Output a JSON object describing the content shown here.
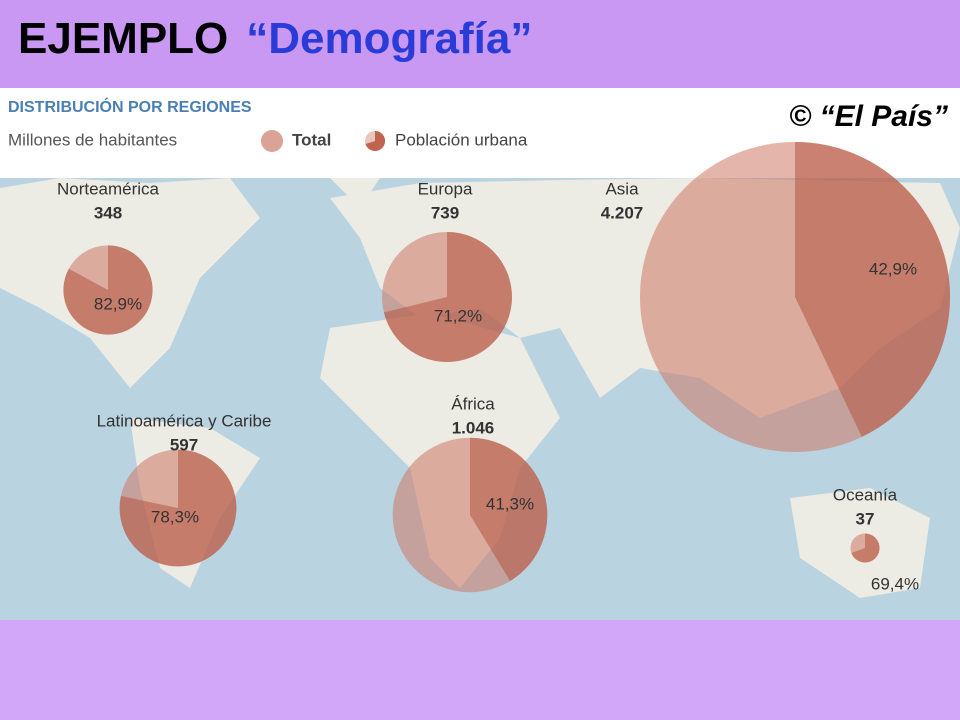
{
  "slide": {
    "title": "EJEMPLO",
    "subtitle": "“Demografía”",
    "credit": "© “El País”"
  },
  "map": {
    "heading": "DISTRIBUCIÓN POR REGIONES",
    "units": "Millones de habitantes",
    "legend": {
      "total": "Total",
      "urban": "Población urbana"
    },
    "regions": [
      {
        "name": "Norteamérica",
        "total": 348,
        "urban": {
          "value": 82.9,
          "label": "82,9%"
        }
      },
      {
        "name": "Europa",
        "total": 739,
        "urban": {
          "value": 71.2,
          "label": "71,2%"
        }
      },
      {
        "name": "Asia",
        "total": {
          "value": 4207,
          "label": "4.207"
        },
        "urban": {
          "value": 42.9,
          "label": "42,9%"
        }
      },
      {
        "name": "Latinoamérica y Caribe",
        "total": 597,
        "urban": {
          "value": 78.3,
          "label": "78,3%"
        }
      },
      {
        "name": "África",
        "total": {
          "value": 1046,
          "label": "1.046"
        },
        "urban": {
          "value": 41.3,
          "label": "41,3%"
        }
      },
      {
        "name": "Oceanía",
        "total": 37,
        "urban": {
          "value": 69.4,
          "label": "69,4%"
        }
      }
    ]
  }
}
